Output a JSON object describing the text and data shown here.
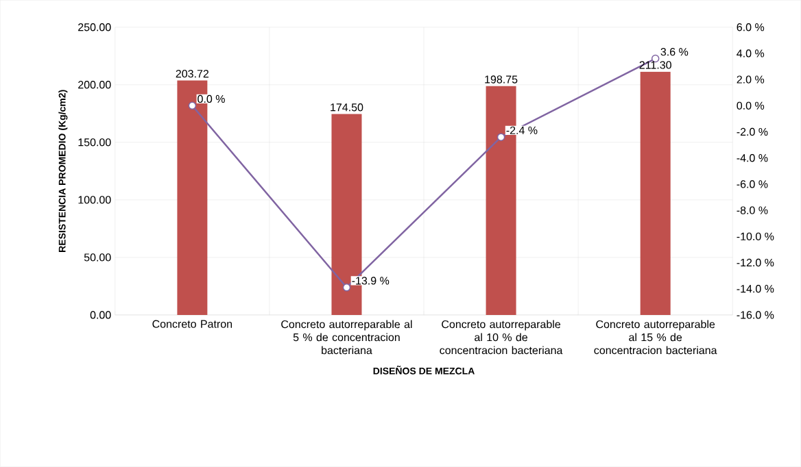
{
  "chart_data": {
    "type": "bar",
    "xlabel": "DISEÑOS DE MEZCLA",
    "ylabel": "RESISTENCIA PROMEDIO (Kg/cm2)",
    "categories": [
      "Concreto Patron",
      "Concreto autorreparable al 5 % de concentracion bacteriana",
      "Concreto autorreparable al 10 % de concentracion bacteriana",
      "Concreto autorreparable al 15 % de concentracion bacteriana"
    ],
    "series": [
      {
        "color": "#c0504d",
        "values": [
          203.72,
          174.5,
          198.75,
          211.3
        ],
        "value_labels": [
          "203.72",
          "174.50",
          "198.75",
          "211.30"
        ]
      },
      {
        "type": "line",
        "axis": "y2",
        "color": "#8064a2",
        "marker": "circle",
        "values": [
          0.0,
          -13.9,
          -2.4,
          3.6
        ],
        "value_labels": [
          "0.0 %",
          "-13.9 %",
          "-2.4 %",
          "3.6 %"
        ]
      }
    ],
    "ylim": [
      0,
      250
    ],
    "yticks": [
      {
        "value": 0,
        "label": "0.00"
      },
      {
        "value": 50,
        "label": "50.00"
      },
      {
        "value": 100,
        "label": "100.00"
      },
      {
        "value": 150,
        "label": "150.00"
      },
      {
        "value": 200,
        "label": "200.00"
      },
      {
        "value": 250,
        "label": "250.00"
      }
    ],
    "y2lim": [
      -16,
      6
    ],
    "y2ticks": [
      {
        "value": -16,
        "label": "-16.0 %"
      },
      {
        "value": -14,
        "label": "-14.0 %"
      },
      {
        "value": -12,
        "label": "-12.0 %"
      },
      {
        "value": -10,
        "label": "-10.0 %"
      },
      {
        "value": -8,
        "label": "-8.0 %"
      },
      {
        "value": -6,
        "label": "-6.0 %"
      },
      {
        "value": -4,
        "label": "-4.0 %"
      },
      {
        "value": -2,
        "label": "-2.0 %"
      },
      {
        "value": 0,
        "label": "0.0 %"
      },
      {
        "value": 2,
        "label": "2.0 %"
      },
      {
        "value": 4,
        "label": "4.0 %"
      },
      {
        "value": 6,
        "label": "6.0 %"
      }
    ],
    "grid": true,
    "legend": false
  }
}
